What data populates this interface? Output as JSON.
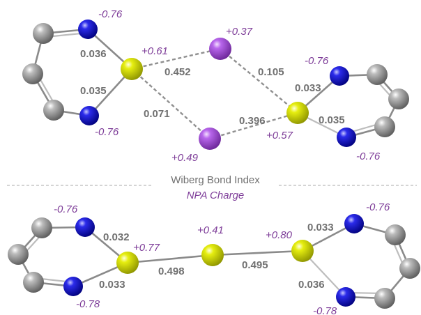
{
  "legend": {
    "bond_index_label": "Wiberg Bond Index",
    "charge_label": "NPA Charge"
  },
  "top_structure": {
    "charges": {
      "n_upper_left": "-0.76",
      "n_lower_left": "-0.76",
      "s_left": "+0.61",
      "i_upper": "+0.37",
      "i_lower": "+0.49",
      "s_right": "+0.57",
      "n_upper_right": "-0.76",
      "n_lower_right": "-0.76"
    },
    "bond_indices": {
      "n_s_upper_left": "0.036",
      "n_s_lower_left": "0.035",
      "s_i_upper_left": "0.452",
      "s_i_lower_left": "0.071",
      "i_s_upper_right": "0.105",
      "i_s_lower_right": "0.396",
      "n_s_upper_right": "0.033",
      "n_s_lower_right": "0.035"
    }
  },
  "bottom_structure": {
    "charges": {
      "n_upper_left": "-0.76",
      "n_lower_left": "-0.78",
      "s_left": "+0.77",
      "s_center": "+0.41",
      "s_right": "+0.80",
      "n_upper_right": "-0.76",
      "n_lower_right": "-0.78"
    },
    "bond_indices": {
      "n_s_upper_left": "0.032",
      "n_s_lower_left": "0.033",
      "s_s_left": "0.498",
      "s_s_right": "0.495",
      "n_s_upper_right": "0.033",
      "n_s_lower_right": "0.036"
    }
  },
  "colors": {
    "carbon": "#8c8c8c",
    "nitrogen": "#1414d2",
    "sulfur": "#e0e800",
    "iodine": "#b860e8",
    "bond_index_text": "#707070",
    "charge_text": "#7d3c98"
  }
}
